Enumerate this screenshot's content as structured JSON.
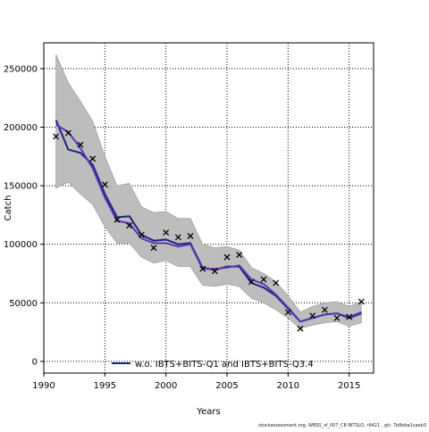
{
  "chart_data": {
    "type": "line",
    "title": "",
    "xlabel": "Years",
    "ylabel": "Catch",
    "xlim": [
      1990,
      2017
    ],
    "ylim": [
      -10000,
      272000
    ],
    "xticks": [
      1990,
      1995,
      2000,
      2005,
      2010,
      2015
    ],
    "xtick_labels": [
      "1990",
      "1995",
      "2000",
      "2005",
      "2010",
      "2015"
    ],
    "yticks": [
      0,
      50000,
      100000,
      150000,
      200000,
      250000
    ],
    "ytick_labels": [
      "0",
      "50000",
      "100000",
      "150000",
      "200000",
      "250000"
    ],
    "grid": true,
    "legend_position": "bottom-center",
    "x": [
      1991,
      1992,
      1993,
      1994,
      1995,
      1996,
      1997,
      1998,
      1999,
      2000,
      2001,
      2002,
      2003,
      2004,
      2005,
      2006,
      2007,
      2008,
      2009,
      2010,
      2011,
      2012,
      2013,
      2014,
      2015,
      2016
    ],
    "band": {
      "upper": [
        262000,
        238000,
        222000,
        205000,
        175000,
        150000,
        152000,
        132000,
        127000,
        128000,
        122000,
        122000,
        100000,
        97000,
        98000,
        95000,
        80000,
        75000,
        68000,
        56000,
        42000,
        47000,
        50000,
        51000,
        47000,
        51000
      ],
      "lower": [
        148000,
        153000,
        143000,
        134000,
        115000,
        101000,
        101000,
        89000,
        84000,
        86000,
        81000,
        81000,
        65000,
        64000,
        66000,
        64000,
        54000,
        50000,
        44000,
        37000,
        28000,
        31000,
        33000,
        34000,
        30000,
        33000
      ]
    },
    "series": [
      {
        "name": "w.o. IBTS+BITS-Q1 and IBTS+BITS-Q3.4",
        "color": "#1a237e",
        "values": [
          206000,
          181000,
          178000,
          168000,
          143000,
          123000,
          124000,
          108000,
          103000,
          104000,
          100000,
          101000,
          80000,
          78000,
          81000,
          81000,
          67000,
          63000,
          56000,
          45000,
          34000,
          37000,
          40000,
          41000,
          37000,
          41000
        ]
      },
      {
        "color": "#5e35b1",
        "values": [
          202000,
          196000,
          182000,
          165000,
          140000,
          120000,
          118000,
          105000,
          101000,
          101000,
          98000,
          100000,
          79000,
          79000,
          80000,
          82000,
          70000,
          66000,
          57000,
          46000,
          34000,
          37000,
          40000,
          41000,
          38000,
          42000
        ]
      }
    ],
    "observed": {
      "x": [
        1991,
        1992,
        1993,
        1994,
        1995,
        1996,
        1997,
        1998,
        1999,
        2000,
        2001,
        2002,
        2003,
        2004,
        2005,
        2006,
        2007,
        2008,
        2009,
        2010,
        2011,
        2012,
        2013,
        2014,
        2015,
        2016
      ],
      "values": [
        192000,
        195000,
        185000,
        173000,
        151000,
        121000,
        116000,
        108000,
        97000,
        110000,
        106000,
        107000,
        79000,
        77000,
        89000,
        91000,
        68000,
        70000,
        67000,
        42000,
        28000,
        39000,
        44000,
        37000,
        38000,
        51000
      ]
    }
  },
  "footer": {
    "text": "stockassessment.org, WBSS_sf_007_CB BITSLO, r9421 , git: 7b8eba1caeb3"
  }
}
